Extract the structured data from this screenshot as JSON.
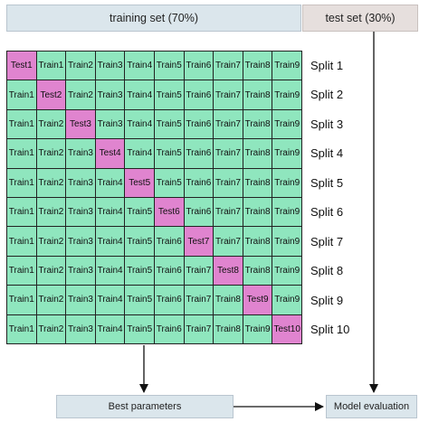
{
  "header": {
    "training_set_label": "training set (70%)",
    "test_set_label": "test set (30%)"
  },
  "folds": {
    "test_labels": [
      "Test1",
      "Test2",
      "Test3",
      "Test4",
      "Test5",
      "Test6",
      "Test7",
      "Test8",
      "Test9",
      "Test10"
    ],
    "train_labels": [
      "Train1",
      "Train2",
      "Train3",
      "Train4",
      "Train5",
      "Train6",
      "Train7",
      "Train8",
      "Train9"
    ]
  },
  "splits": [
    "Split 1",
    "Split 2",
    "Split 3",
    "Split 4",
    "Split 5",
    "Split 6",
    "Split 7",
    "Split 8",
    "Split 9",
    "Split 10"
  ],
  "footer": {
    "best_parameters_label": "Best parameters",
    "model_evaluation_label": "Model evaluation"
  },
  "colors": {
    "train_cell": "#8fe6be",
    "test_cell": "#e084cf",
    "header_training": "#dbe6ec",
    "header_test": "#e6dfdd"
  }
}
